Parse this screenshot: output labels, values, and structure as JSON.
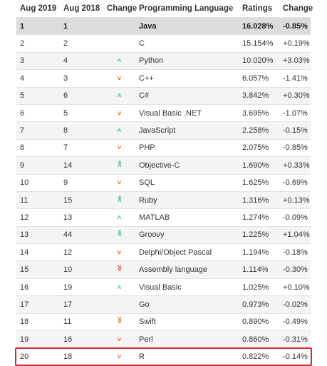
{
  "headers": {
    "aug2019": "Aug 2019",
    "aug2018": "Aug 2018",
    "change": "Change",
    "language": "Programming Language",
    "ratings": "Ratings",
    "change2": "Change"
  },
  "colors": {
    "up_arrow": "#3cb371",
    "down_arrow": "#e0503b",
    "highlight_box": "#d62828",
    "top_row_bg": "#dcdcdc"
  },
  "rows": [
    {
      "aug2019": "1",
      "aug2018": "1",
      "arrow": "",
      "language": "Java",
      "ratings": "16.028%",
      "change": "-0.85%"
    },
    {
      "aug2019": "2",
      "aug2018": "2",
      "arrow": "",
      "language": "C",
      "ratings": "15.154%",
      "change": "+0.19%"
    },
    {
      "aug2019": "3",
      "aug2018": "4",
      "arrow": "^",
      "language": "Python",
      "ratings": "10.020%",
      "change": "+3.03%"
    },
    {
      "aug2019": "4",
      "aug2018": "3",
      "arrow": "v",
      "language": "C++",
      "ratings": "6.057%",
      "change": "-1.41%"
    },
    {
      "aug2019": "5",
      "aug2018": "6",
      "arrow": "^",
      "language": "C#",
      "ratings": "3.842%",
      "change": "+0.30%"
    },
    {
      "aug2019": "6",
      "aug2018": "5",
      "arrow": "v",
      "language": "Visual Basic .NET",
      "ratings": "3.695%",
      "change": "-1.07%"
    },
    {
      "aug2019": "7",
      "aug2018": "8",
      "arrow": "^",
      "language": "JavaScript",
      "ratings": "2.258%",
      "change": "-0.15%"
    },
    {
      "aug2019": "8",
      "aug2018": "7",
      "arrow": "v",
      "language": "PHP",
      "ratings": "2.075%",
      "change": "-0.85%"
    },
    {
      "aug2019": "9",
      "aug2018": "14",
      "arrow": "^^",
      "language": "Objective-C",
      "ratings": "1.690%",
      "change": "+0.33%"
    },
    {
      "aug2019": "10",
      "aug2018": "9",
      "arrow": "v",
      "language": "SQL",
      "ratings": "1.625%",
      "change": "-0.69%"
    },
    {
      "aug2019": "11",
      "aug2018": "15",
      "arrow": "^^",
      "language": "Ruby",
      "ratings": "1.316%",
      "change": "+0.13%"
    },
    {
      "aug2019": "12",
      "aug2018": "13",
      "arrow": "^",
      "language": "MATLAB",
      "ratings": "1.274%",
      "change": "-0.09%"
    },
    {
      "aug2019": "13",
      "aug2018": "44",
      "arrow": "^^",
      "language": "Groovy",
      "ratings": "1.225%",
      "change": "+1.04%"
    },
    {
      "aug2019": "14",
      "aug2018": "12",
      "arrow": "v",
      "language": "Delphi/Object Pascal",
      "ratings": "1.194%",
      "change": "-0.18%"
    },
    {
      "aug2019": "15",
      "aug2018": "10",
      "arrow": "vv",
      "language": "Assembly language",
      "ratings": "1.114%",
      "change": "-0.30%"
    },
    {
      "aug2019": "16",
      "aug2018": "19",
      "arrow": "^",
      "language": "Visual Basic",
      "ratings": "1.025%",
      "change": "+0.10%"
    },
    {
      "aug2019": "17",
      "aug2018": "17",
      "arrow": "",
      "language": "Go",
      "ratings": "0.973%",
      "change": "-0.02%"
    },
    {
      "aug2019": "18",
      "aug2018": "11",
      "arrow": "vv",
      "language": "Swift",
      "ratings": "0.890%",
      "change": "-0.49%"
    },
    {
      "aug2019": "19",
      "aug2018": "16",
      "arrow": "v",
      "language": "Perl",
      "ratings": "0.860%",
      "change": "-0.31%"
    },
    {
      "aug2019": "20",
      "aug2018": "18",
      "arrow": "v",
      "language": "R",
      "ratings": "0.822%",
      "change": "-0.14%"
    }
  ]
}
